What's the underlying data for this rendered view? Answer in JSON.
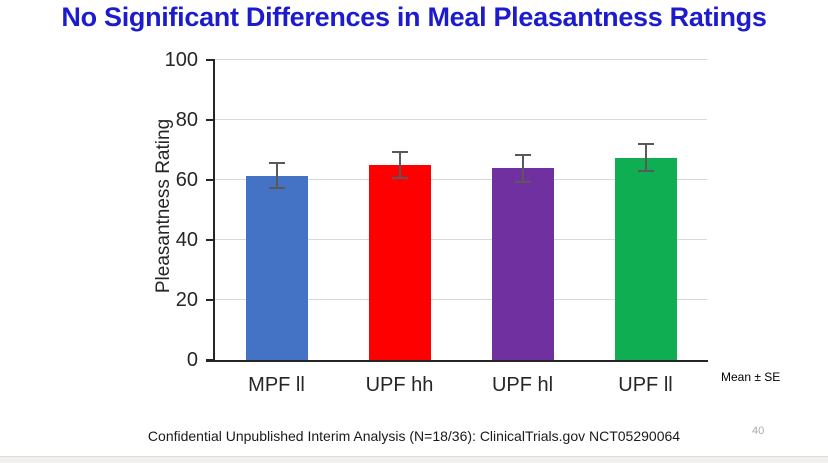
{
  "page": {
    "title": "No Significant Differences in Meal Pleasantness Ratings",
    "title_color": "#1c1ccd",
    "footer": "Confidential Unpublished Interim Analysis (N=18/36): ClinicalTrials.gov NCT05290064",
    "page_number": "40"
  },
  "chart_data": {
    "type": "bar",
    "title": "",
    "categories": [
      "MPF ll",
      "UPF hh",
      "UPF hl",
      "UPF ll"
    ],
    "values": [
      61.5,
      65,
      64,
      67.5
    ],
    "errors": [
      4.2,
      4.4,
      4.5,
      4.6
    ],
    "error_note": "Mean ± SE",
    "bar_colors": [
      "#4472C4",
      "#FE0000",
      "#7030A0",
      "#0FAE52"
    ],
    "error_color": "#595959",
    "xlabel": "",
    "ylabel": "Pleasantness Rating",
    "ylim": [
      0,
      100
    ],
    "yticks": [
      0,
      20,
      40,
      60,
      80,
      100
    ],
    "grid": true,
    "gridline_color": "#d9d9d9",
    "axis_color": "#262626",
    "legend": "none"
  }
}
